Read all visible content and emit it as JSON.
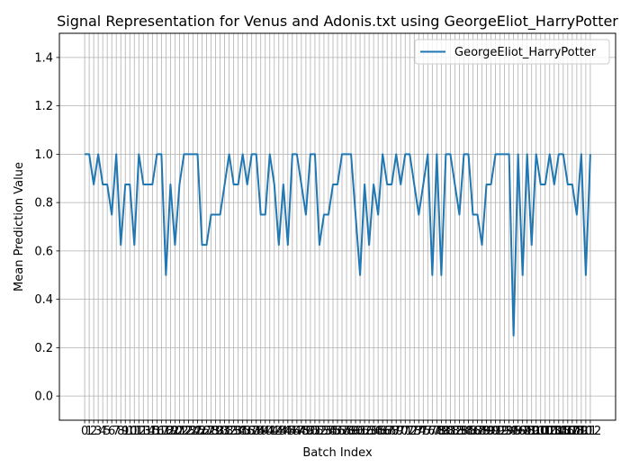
{
  "chart_data": {
    "type": "line",
    "title": "Signal Representation for Venus and Adonis.txt using GeorgeEliot_HarryPotter",
    "xlabel": "Batch Index",
    "ylabel": "Mean Prediction Value",
    "xlim": [
      -5.6,
      117.6
    ],
    "ylim": [
      -0.1,
      1.5
    ],
    "yticks": [
      0.0,
      0.2,
      0.4,
      0.6,
      0.8,
      1.0,
      1.2,
      1.4
    ],
    "ytick_labels": [
      "0.0",
      "0.2",
      "0.4",
      "0.6",
      "0.8",
      "1.0",
      "1.2",
      "1.4"
    ],
    "grid": true,
    "legend_position": "upper right",
    "series": [
      {
        "name": "GeorgeEliot_HarryPotter",
        "color": "#1f77b4",
        "x": [
          0,
          1,
          2,
          3,
          4,
          5,
          6,
          7,
          8,
          9,
          10,
          11,
          12,
          13,
          14,
          15,
          16,
          17,
          18,
          19,
          20,
          21,
          22,
          23,
          24,
          25,
          26,
          27,
          28,
          29,
          30,
          31,
          32,
          33,
          34,
          35,
          36,
          37,
          38,
          39,
          40,
          41,
          42,
          43,
          44,
          45,
          46,
          47,
          48,
          49,
          50,
          51,
          52,
          53,
          54,
          55,
          56,
          57,
          58,
          59,
          60,
          61,
          62,
          63,
          64,
          65,
          66,
          67,
          68,
          69,
          70,
          71,
          72,
          73,
          74,
          75,
          76,
          77,
          78,
          79,
          80,
          81,
          82,
          83,
          84,
          85,
          86,
          87,
          88,
          89,
          90,
          91,
          92,
          93,
          94,
          95,
          96,
          97,
          98,
          99,
          100,
          101,
          102,
          103,
          104,
          105,
          106,
          107,
          108,
          109,
          110,
          111,
          112
        ],
        "y": [
          1.0,
          1.0,
          0.875,
          1.0,
          0.875,
          0.875,
          0.75,
          1.0,
          0.625,
          0.875,
          0.875,
          0.625,
          1.0,
          0.875,
          0.875,
          0.875,
          1.0,
          1.0,
          0.5,
          0.875,
          0.625,
          0.875,
          1.0,
          1.0,
          1.0,
          1.0,
          0.625,
          0.625,
          0.75,
          0.75,
          0.75,
          0.875,
          1.0,
          0.875,
          0.875,
          1.0,
          0.875,
          1.0,
          1.0,
          0.75,
          0.75,
          1.0,
          0.875,
          0.625,
          0.875,
          0.625,
          1.0,
          1.0,
          0.875,
          0.75,
          1.0,
          1.0,
          0.625,
          0.75,
          0.75,
          0.875,
          0.875,
          1.0,
          1.0,
          1.0,
          0.75,
          0.5,
          0.875,
          0.625,
          0.875,
          0.75,
          1.0,
          0.875,
          0.875,
          1.0,
          0.875,
          1.0,
          1.0,
          0.875,
          0.75,
          0.875,
          1.0,
          0.5,
          1.0,
          0.5,
          1.0,
          1.0,
          0.875,
          0.75,
          1.0,
          1.0,
          0.75,
          0.75,
          0.625,
          0.875,
          0.875,
          1.0,
          1.0,
          1.0,
          1.0,
          0.25,
          1.0,
          0.5,
          1.0,
          0.625,
          1.0,
          0.875,
          0.875,
          1.0,
          0.875,
          1.0,
          1.0,
          0.875,
          0.875,
          0.75,
          1.0,
          0.5,
          1.0
        ]
      }
    ],
    "x_tick_labels": [
      "0",
      "1",
      "2",
      "3",
      "4",
      "5",
      "6",
      "7",
      "8",
      "9",
      "10",
      "11",
      "12",
      "13",
      "14",
      "15",
      "16",
      "17",
      "18",
      "19",
      "20",
      "21",
      "22",
      "23",
      "24",
      "25",
      "26",
      "27",
      "28",
      "29",
      "30",
      "31",
      "32",
      "33",
      "34",
      "35",
      "36",
      "37",
      "38",
      "39",
      "40",
      "41",
      "42",
      "43",
      "44",
      "45",
      "46",
      "47",
      "48",
      "49",
      "50",
      "51",
      "52",
      "53",
      "54",
      "55",
      "56",
      "57",
      "58",
      "59",
      "60",
      "61",
      "62",
      "63",
      "64",
      "65",
      "66",
      "67",
      "68",
      "69",
      "70",
      "71",
      "72",
      "73",
      "74",
      "75",
      "76",
      "77",
      "78",
      "79",
      "80",
      "81",
      "82",
      "83",
      "84",
      "85",
      "86",
      "87",
      "88",
      "89",
      "90",
      "91",
      "92",
      "93",
      "94",
      "95",
      "96",
      "97",
      "98",
      "99",
      "100",
      "101",
      "102",
      "103",
      "104",
      "105",
      "106",
      "107",
      "108",
      "109",
      "110",
      "111",
      "112"
    ]
  }
}
